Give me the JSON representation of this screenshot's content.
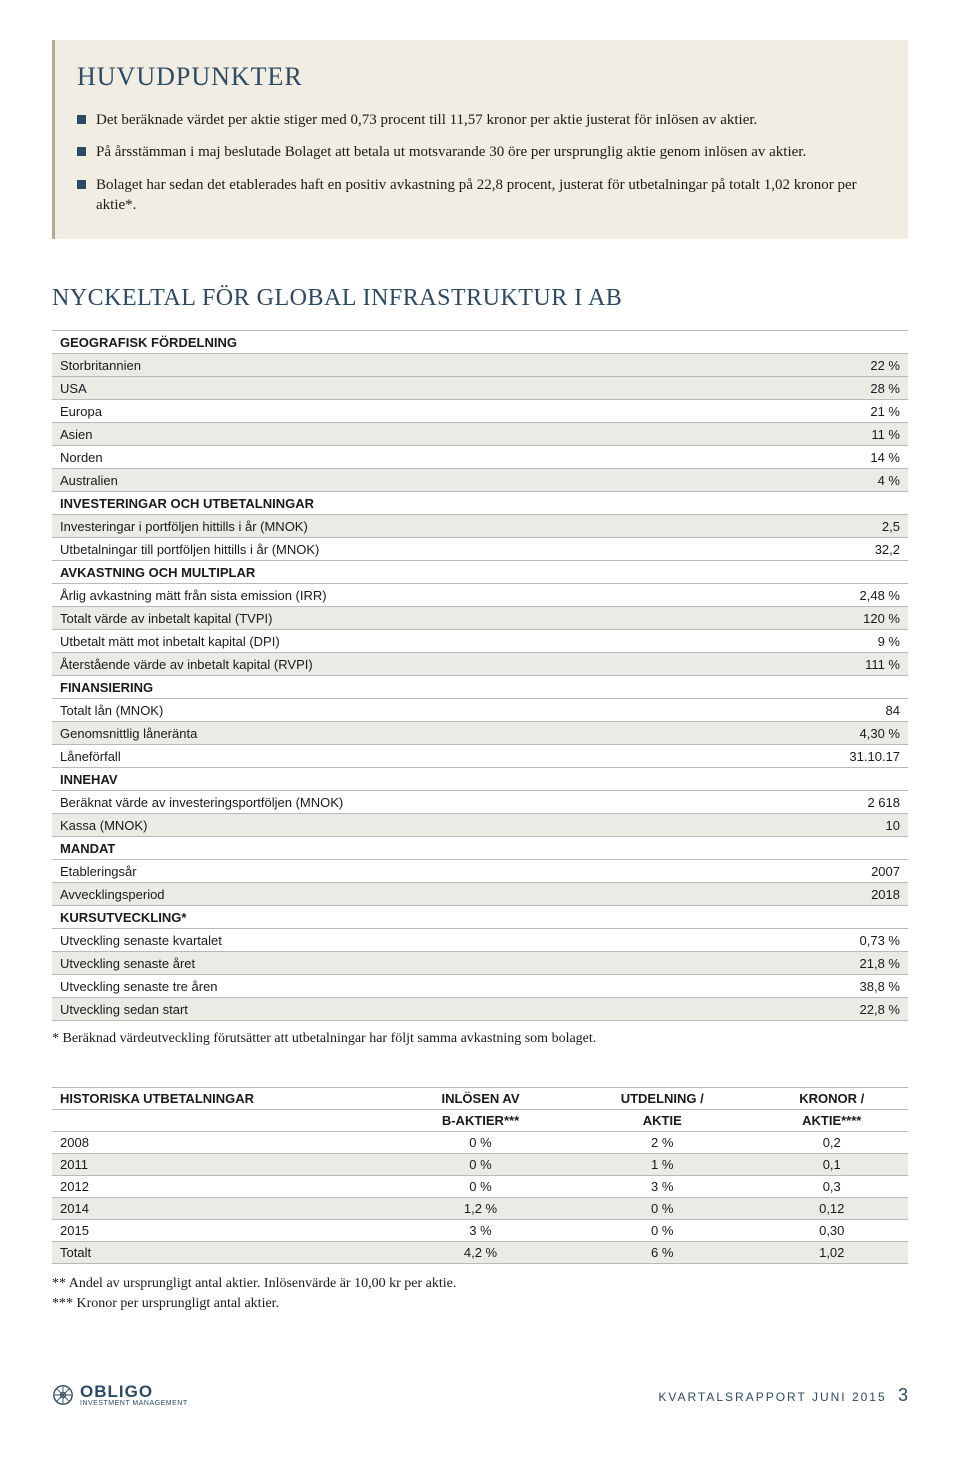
{
  "colors": {
    "accent": "#2c4a63",
    "box_bg": "#f2ede3",
    "box_border": "#b3aa98",
    "row_shade": "#eceae5",
    "border": "#b9b9b9"
  },
  "huvud": {
    "title": "HUVUDPUNKTER",
    "bullets": [
      "Det beräknade värdet per aktie stiger med 0,73 procent till 11,57 kronor per aktie justerat för inlösen av aktier.",
      "På årsstämman i maj beslutade Bolaget att betala ut motsvarande 30 öre per ursprunglig aktie genom inlösen av aktier.",
      "Bolaget har sedan det etablerades haft en positiv avkastning på 22,8 procent, justerat för utbetalningar på totalt 1,02 kronor per aktie*."
    ]
  },
  "kpi_title": "NYCKELTAL FÖR GLOBAL INFRASTRUKTUR I AB",
  "kpi_rows": [
    {
      "type": "header",
      "label": "GEOGRAFISK FÖRDELNING",
      "value": ""
    },
    {
      "type": "shade",
      "label": "Storbritannien",
      "value": "22 %"
    },
    {
      "type": "shade",
      "label": "USA",
      "value": "28 %"
    },
    {
      "type": "white",
      "label": "Europa",
      "value": "21 %"
    },
    {
      "type": "shade",
      "label": "Asien",
      "value": "11 %"
    },
    {
      "type": "white",
      "label": "Norden",
      "value": "14 %"
    },
    {
      "type": "shade",
      "label": "Australien",
      "value": "4 %"
    },
    {
      "type": "header",
      "label": "INVESTERINGAR OCH UTBETALNINGAR",
      "value": ""
    },
    {
      "type": "shade",
      "label": "Investeringar i portföljen hittills i år (MNOK)",
      "value": "2,5"
    },
    {
      "type": "white",
      "label": "Utbetalningar till portföljen hittills i år (MNOK)",
      "value": "32,2"
    },
    {
      "type": "header",
      "label": "AVKASTNING OCH MULTIPLAR",
      "value": ""
    },
    {
      "type": "white",
      "label": "Årlig avkastning mätt från sista emission (IRR)",
      "value": "2,48 %"
    },
    {
      "type": "shade",
      "label": "Totalt värde av inbetalt kapital (TVPI)",
      "value": "120 %"
    },
    {
      "type": "white",
      "label": "Utbetalt mätt mot inbetalt kapital (DPI)",
      "value": "9 %"
    },
    {
      "type": "shade",
      "label": "Återstående värde av inbetalt kapital (RVPI)",
      "value": "111 %"
    },
    {
      "type": "header",
      "label": "FINANSIERING",
      "value": ""
    },
    {
      "type": "white",
      "label": "Totalt lån (MNOK)",
      "value": "84"
    },
    {
      "type": "shade",
      "label": "Genomsnittlig låneränta",
      "value": "4,30 %"
    },
    {
      "type": "white",
      "label": "Låneförfall",
      "value": "31.10.17"
    },
    {
      "type": "header",
      "label": "INNEHAV",
      "value": ""
    },
    {
      "type": "white",
      "label": "Beräknat värde av investeringsportföljen (MNOK)",
      "value": "2 618"
    },
    {
      "type": "shade",
      "label": "Kassa (MNOK)",
      "value": "10"
    },
    {
      "type": "header",
      "label": "MANDAT",
      "value": ""
    },
    {
      "type": "white",
      "label": "Etableringsår",
      "value": "2007"
    },
    {
      "type": "shade",
      "label": "Avvecklingsperiod",
      "value": "2018"
    },
    {
      "type": "header",
      "label": "KURSUTVECKLING*",
      "value": ""
    },
    {
      "type": "white",
      "label": "Utveckling senaste kvartalet",
      "value": "0,73 %"
    },
    {
      "type": "shade",
      "label": "Utveckling senaste året",
      "value": "21,8 %"
    },
    {
      "type": "white",
      "label": "Utveckling senaste tre åren",
      "value": "38,8 %"
    },
    {
      "type": "shade",
      "label": "Utveckling sedan start",
      "value": "22,8 %"
    }
  ],
  "kpi_note": "* Beräknad värdeutveckling förutsätter att utbetalningar har följt samma avkastning som bolaget.",
  "hist": {
    "col1": "HISTORISKA UTBETALNINGAR",
    "col2a": "INLÖSEN AV",
    "col2b": "B-AKTIER***",
    "col3a": "UTDELNING /",
    "col3b": "AKTIE",
    "col4a": "KRONOR /",
    "col4b": "AKTIE****",
    "rows": [
      {
        "shade": false,
        "c": [
          "2008",
          "0 %",
          "2 %",
          "0,2"
        ]
      },
      {
        "shade": true,
        "c": [
          "2011",
          "0 %",
          "1 %",
          "0,1"
        ]
      },
      {
        "shade": false,
        "c": [
          "2012",
          "0 %",
          "3 %",
          "0,3"
        ]
      },
      {
        "shade": true,
        "c": [
          "2014",
          "1,2 %",
          "0 %",
          "0,12"
        ]
      },
      {
        "shade": false,
        "c": [
          "2015",
          "3 %",
          "0 %",
          "0,30"
        ]
      },
      {
        "shade": true,
        "c": [
          "Totalt",
          "4,2 %",
          "6 %",
          "1,02"
        ]
      }
    ],
    "note1": "**   Andel av ursprungligt antal aktier. Inlösenvärde är 10,00 kr per aktie.",
    "note2": "*** Kronor per ursprungligt antal aktier."
  },
  "footer": {
    "logo_text": "OBLIGO",
    "logo_sub": "INVESTMENT MANAGEMENT",
    "right": "KVARTALSRAPPORT JUNI 2015",
    "page": "3"
  }
}
